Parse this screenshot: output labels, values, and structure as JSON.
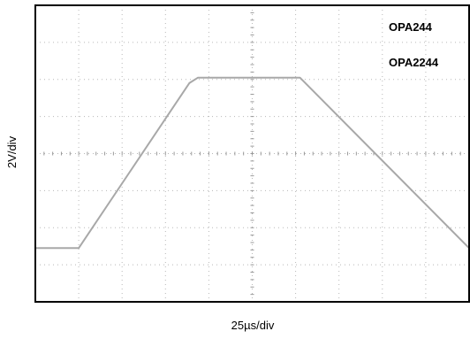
{
  "chart_data": {
    "type": "line",
    "title": "",
    "xlabel": "25µs/div",
    "ylabel": "2V/div",
    "annotations": [
      "OPA244",
      "OPA2244"
    ],
    "grid": true,
    "grid_divisions": {
      "x": 10,
      "y": 8
    },
    "xlim": [
      0,
      10
    ],
    "ylim": [
      0,
      8
    ],
    "series": [
      {
        "values_x": [
          0,
          1.0,
          3.55,
          3.75,
          6.1,
          10.0
        ],
        "values_y": [
          1.45,
          1.45,
          5.9,
          6.05,
          6.05,
          1.45
        ]
      }
    ],
    "colors": {
      "trace": "#a8a8a8",
      "grid": "#b8b8b8",
      "frame": "#000000"
    }
  }
}
